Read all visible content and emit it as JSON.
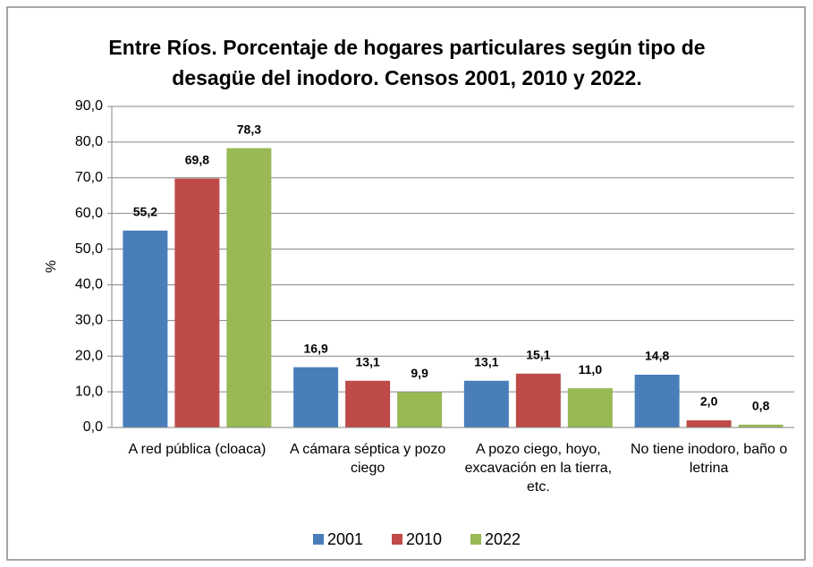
{
  "chart_data": {
    "type": "bar",
    "title": "Entre Ríos. Porcentaje de hogares particulares según tipo de desagüe del inodoro. Censos 2001, 2010 y 2022.",
    "y_label": "%",
    "categories": [
      "A red pública (cloaca)",
      "A cámara séptica y pozo ciego",
      "A pozo ciego, hoyo, excavación en la tierra, etc.",
      "No tiene inodoro, baño o letrina"
    ],
    "series": [
      {
        "name": "2001",
        "color": "#4a7ebb",
        "values": [
          55.2,
          16.9,
          13.1,
          14.8
        ],
        "value_labels": [
          "55,2",
          "16,9",
          "13,1",
          "14,8"
        ]
      },
      {
        "name": "2010",
        "color": "#be4b48",
        "values": [
          69.8,
          13.1,
          15.1,
          2.0
        ],
        "value_labels": [
          "69,8",
          "13,1",
          "15,1",
          "2,0"
        ]
      },
      {
        "name": "2022",
        "color": "#98b954",
        "values": [
          78.3,
          9.9,
          11.0,
          0.8
        ],
        "value_labels": [
          "78,3",
          "9,9",
          "11,0",
          "0,8"
        ]
      }
    ],
    "ylim": [
      0,
      90
    ],
    "yticks": [
      {
        "value": 0,
        "label": "0,0"
      },
      {
        "value": 10,
        "label": "10,0"
      },
      {
        "value": 20,
        "label": "20,0"
      },
      {
        "value": 30,
        "label": "30,0"
      },
      {
        "value": 40,
        "label": "40,0"
      },
      {
        "value": 50,
        "label": "50,0"
      },
      {
        "value": 60,
        "label": "60,0"
      },
      {
        "value": 70,
        "label": "70,0"
      },
      {
        "value": 80,
        "label": "80,0"
      },
      {
        "value": 90,
        "label": "90,0"
      }
    ],
    "grid": true,
    "legend": "bottom"
  }
}
